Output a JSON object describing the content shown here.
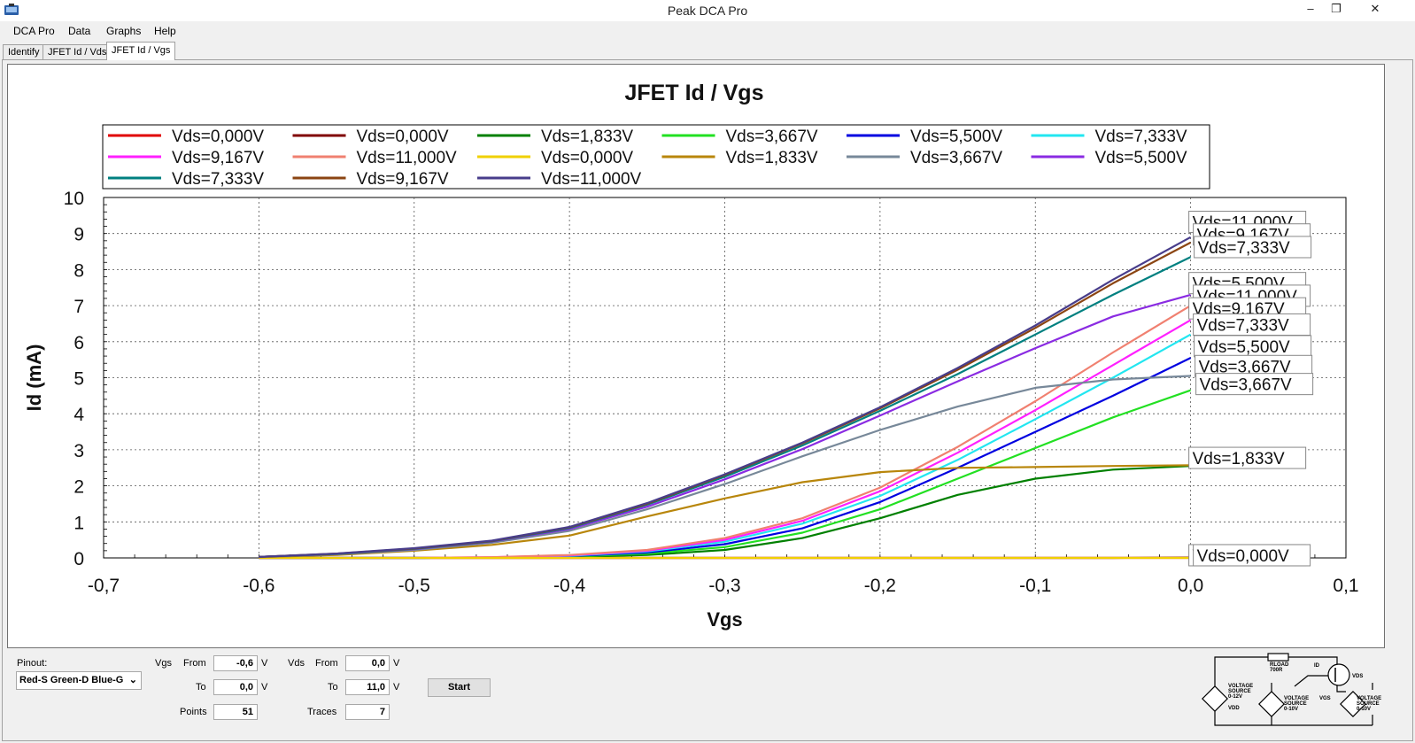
{
  "app": {
    "title": "Peak DCA Pro"
  },
  "window": {
    "minimize": "–",
    "restore": "❐",
    "close": "✕"
  },
  "menu": [
    "DCA Pro",
    "Data",
    "Graphs",
    "Help"
  ],
  "tabs": [
    "Identify",
    "JFET Id / Vds",
    "JFET Id / Vgs"
  ],
  "active_tab": 2,
  "chart_data": {
    "type": "line",
    "title": "JFET Id / Vgs",
    "xlabel": "Vgs",
    "ylabel": "Id (mA)",
    "xlim": [
      -0.7,
      0.1
    ],
    "ylim": [
      0,
      10
    ],
    "xticks": [
      -0.7,
      -0.6,
      -0.5,
      -0.4,
      -0.3,
      -0.2,
      -0.1,
      0.0,
      0.1
    ],
    "xtick_labels": [
      "-0,7",
      "-0,6",
      "-0,5",
      "-0,4",
      "-0,3",
      "-0,2",
      "-0,1",
      "0,0",
      "0,1"
    ],
    "yticks": [
      0,
      1,
      2,
      3,
      4,
      5,
      6,
      7,
      8,
      9,
      10
    ],
    "ytick_labels": [
      "0",
      "1",
      "2",
      "3",
      "4",
      "5",
      "6",
      "7",
      "8",
      "9",
      "10"
    ],
    "grid": true,
    "legend_position": "top",
    "x": [
      -0.6,
      -0.55,
      -0.5,
      -0.45,
      -0.4,
      -0.35,
      -0.3,
      -0.25,
      -0.2,
      -0.15,
      -0.1,
      -0.05,
      0.0
    ],
    "series": [
      {
        "name": "Vds=0,000V",
        "color": "#e00000",
        "values": [
          0,
          0,
          0,
          0,
          0,
          0,
          0,
          0,
          0,
          0,
          0,
          0,
          0
        ]
      },
      {
        "name": "Vds=0,000V",
        "color": "#800000",
        "values": [
          0,
          0,
          0,
          0,
          0,
          0,
          0,
          0,
          0,
          0,
          0,
          0,
          0.01
        ]
      },
      {
        "name": "Vds=1,833V",
        "color": "#008000",
        "values": [
          0,
          0,
          0,
          0.01,
          0.02,
          0.08,
          0.22,
          0.55,
          1.1,
          1.75,
          2.2,
          2.45,
          2.55
        ]
      },
      {
        "name": "Vds=3,667V",
        "color": "#22e022",
        "values": [
          0,
          0,
          0,
          0.01,
          0.04,
          0.12,
          0.3,
          0.7,
          1.35,
          2.2,
          3.05,
          3.9,
          4.65
        ]
      },
      {
        "name": "Vds=5,500V",
        "color": "#0000e0",
        "values": [
          0,
          0,
          0,
          0.01,
          0.05,
          0.15,
          0.38,
          0.82,
          1.55,
          2.5,
          3.5,
          4.5,
          5.55
        ]
      },
      {
        "name": "Vds=7,333V",
        "color": "#22e6f0",
        "values": [
          0,
          0,
          0,
          0.01,
          0.06,
          0.18,
          0.45,
          0.95,
          1.72,
          2.72,
          3.85,
          5.0,
          6.2
        ]
      },
      {
        "name": "Vds=9,167V",
        "color": "#ff20ff",
        "values": [
          0,
          0,
          0,
          0.02,
          0.07,
          0.2,
          0.5,
          1.03,
          1.85,
          2.92,
          4.1,
          5.35,
          6.6
        ]
      },
      {
        "name": "Vds=11,000V",
        "color": "#f08070",
        "values": [
          0,
          0,
          0,
          0.02,
          0.08,
          0.22,
          0.55,
          1.1,
          1.95,
          3.08,
          4.35,
          5.7,
          7.0
        ]
      },
      {
        "name": "Vds=0,000V",
        "color": "#f0d000",
        "values": [
          0,
          0,
          0,
          0,
          0,
          0,
          0,
          0,
          0,
          0,
          0,
          0,
          0
        ]
      },
      {
        "name": "Vds=1,833V",
        "color": "#b8860b",
        "values": [
          0.02,
          0.08,
          0.2,
          0.36,
          0.62,
          1.15,
          1.65,
          2.1,
          2.38,
          2.5,
          2.52,
          2.55,
          2.57
        ]
      },
      {
        "name": "Vds=3,667V",
        "color": "#778899",
        "values": [
          0.03,
          0.1,
          0.22,
          0.42,
          0.75,
          1.35,
          2.05,
          2.82,
          3.55,
          4.2,
          4.72,
          4.95,
          5.05
        ]
      },
      {
        "name": "Vds=5,500V",
        "color": "#8a2be2",
        "values": [
          0.03,
          0.11,
          0.24,
          0.45,
          0.8,
          1.42,
          2.18,
          3.02,
          3.95,
          4.9,
          5.82,
          6.7,
          7.3
        ]
      },
      {
        "name": "Vds=7,333V",
        "color": "#008080",
        "values": [
          0.03,
          0.11,
          0.25,
          0.46,
          0.83,
          1.48,
          2.25,
          3.12,
          4.08,
          5.1,
          6.2,
          7.3,
          8.35
        ]
      },
      {
        "name": "Vds=9,167V",
        "color": "#8b4513",
        "values": [
          0.03,
          0.12,
          0.26,
          0.47,
          0.85,
          1.5,
          2.3,
          3.18,
          4.15,
          5.22,
          6.38,
          7.62,
          8.75
        ]
      },
      {
        "name": "Vds=11,000V",
        "color": "#483d8b",
        "values": [
          0.03,
          0.12,
          0.27,
          0.48,
          0.86,
          1.52,
          2.32,
          3.2,
          4.18,
          5.27,
          6.45,
          7.72,
          8.9
        ]
      }
    ],
    "annotations": [
      {
        "text": "Vds=11,000V",
        "x": 0.0,
        "y": 9.3,
        "layer": 0
      },
      {
        "text": "Vds=9,167V",
        "x": 0.0,
        "y": 8.95,
        "layer": 1
      },
      {
        "text": "Vds=7,333V",
        "x": 0.0,
        "y": 8.6,
        "layer": 2
      },
      {
        "text": "Vds=5,500V",
        "x": 0.0,
        "y": 7.6,
        "layer": 0
      },
      {
        "text": "Vds=11,000V",
        "x": 0.0,
        "y": 7.25,
        "layer": 1
      },
      {
        "text": "Vds=9,167V",
        "x": 0.0,
        "y": 6.9,
        "layer": 0
      },
      {
        "text": "Vds=7,333V",
        "x": 0.0,
        "y": 6.45,
        "layer": 1
      },
      {
        "text": "Vds=5,500V",
        "x": 0.0,
        "y": 5.85,
        "layer": 2
      },
      {
        "text": "Vds=3,667V",
        "x": 0.0,
        "y": 5.3,
        "layer": 3
      },
      {
        "text": "Vds=3,667V",
        "x": 0.0,
        "y": 4.8,
        "layer": 4
      },
      {
        "text": "Vds=1,833V",
        "x": 0.0,
        "y": 2.75,
        "layer": 0
      },
      {
        "text": "Vds=0,000V",
        "x": 0.0,
        "y": 0.05,
        "layer": 0
      },
      {
        "text": "Vds=0,000V",
        "x": 0.0,
        "y": 0.05,
        "layer": 1
      }
    ]
  },
  "controls": {
    "pinout_label": "Pinout:",
    "pinout_value": "Red-S Green-D Blue-G",
    "vgs_label": "Vgs",
    "vds_label": "Vds",
    "from_label": "From",
    "to_label": "To",
    "points_label": "Points",
    "traces_label": "Traces",
    "unit_v": "V",
    "vgs_from": "-0,6",
    "vgs_to": "0,0",
    "vds_from": "0,0",
    "vds_to": "11,0",
    "points": "51",
    "traces": "7",
    "start_label": "Start"
  },
  "schematic": {
    "rload_label": "RLOAD",
    "rload_value": "700R",
    "id_label": "ID",
    "vds_label": "VDS",
    "vgs_label": "VGS",
    "vdd_source": [
      "VOLTAGE",
      "SOURCE",
      "0-12V"
    ],
    "vdd_label": "VDD",
    "vgs_source": [
      "VOLTAGE",
      "SOURCE",
      "0-10V"
    ],
    "vds_source": [
      "VOLTAGE",
      "SOURCE",
      "0-10V"
    ]
  }
}
